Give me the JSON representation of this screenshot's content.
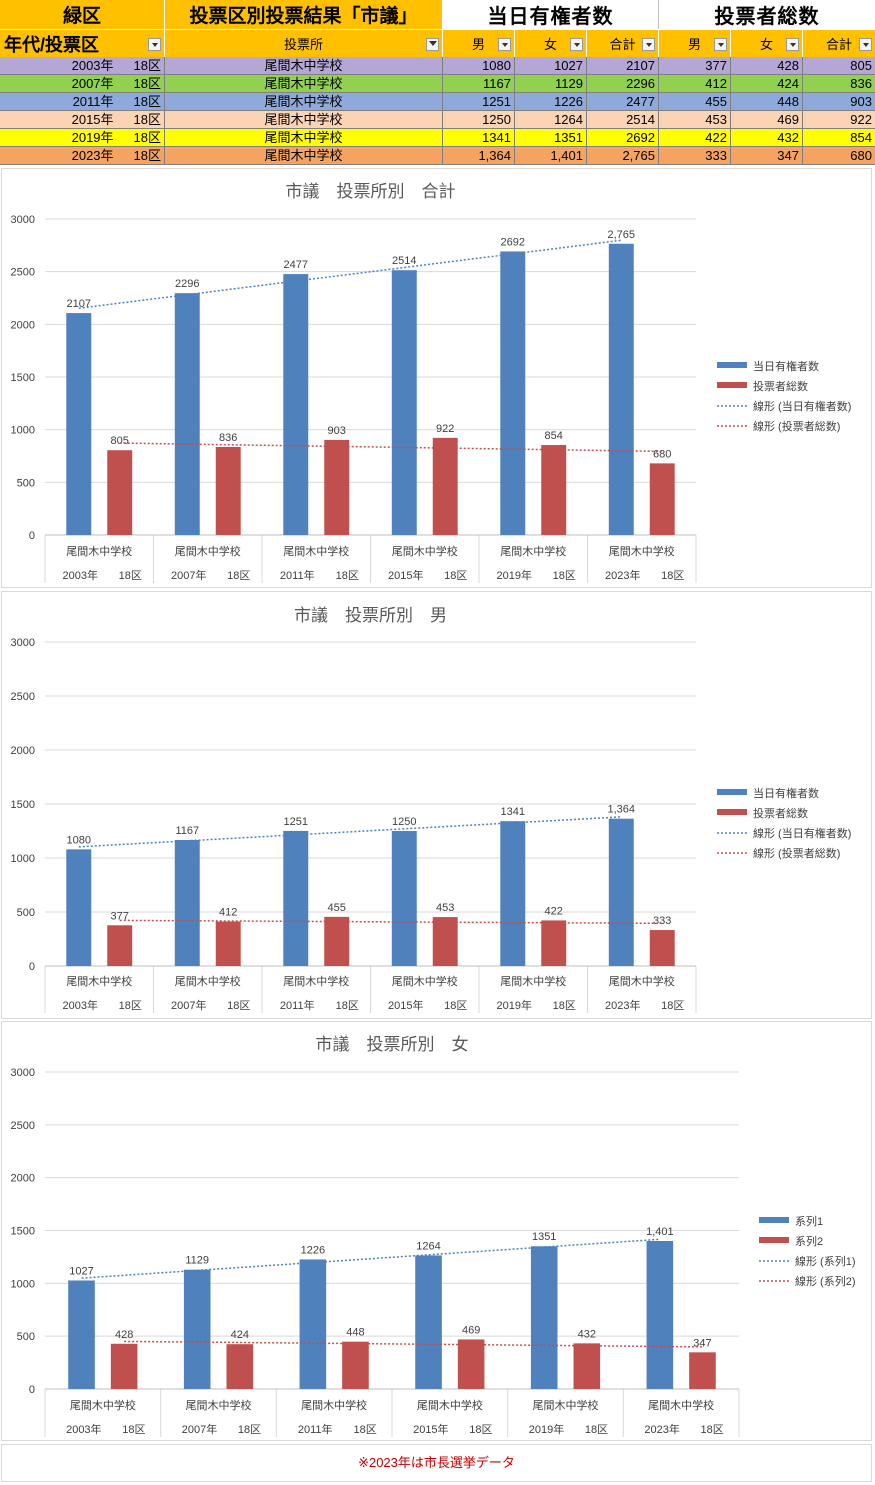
{
  "table": {
    "top_headers": {
      "ward": "緑区",
      "title": "投票区別投票結果「市議」",
      "eligible": "当日有権者数",
      "voters": "投票者総数"
    },
    "columns": {
      "era": "年代/投票区",
      "station": "投票所",
      "m1": "男",
      "f1": "女",
      "t1": "合計",
      "m2": "男",
      "f2": "女",
      "t2": "合計"
    },
    "rows": [
      {
        "year": "2003年",
        "district": "18区",
        "station": "尾間木中学校",
        "m1": "1080",
        "f1": "1027",
        "t1": "2107",
        "m2": "377",
        "f2": "428",
        "t2": "805",
        "color": "#b4a7d6"
      },
      {
        "year": "2007年",
        "district": "18区",
        "station": "尾間木中学校",
        "m1": "1167",
        "f1": "1129",
        "t1": "2296",
        "m2": "412",
        "f2": "424",
        "t2": "836",
        "color": "#92d050"
      },
      {
        "year": "2011年",
        "district": "18区",
        "station": "尾間木中学校",
        "m1": "1251",
        "f1": "1226",
        "t1": "2477",
        "m2": "455",
        "f2": "448",
        "t2": "903",
        "color": "#8eaadb"
      },
      {
        "year": "2015年",
        "district": "18区",
        "station": "尾間木中学校",
        "m1": "1250",
        "f1": "1264",
        "t1": "2514",
        "m2": "453",
        "f2": "469",
        "t2": "922",
        "color": "#fbd4b4"
      },
      {
        "year": "2019年",
        "district": "18区",
        "station": "尾間木中学校",
        "m1": "1341",
        "f1": "1351",
        "t1": "2692",
        "m2": "422",
        "f2": "432",
        "t2": "854",
        "color": "#ffff00"
      },
      {
        "year": "2023年",
        "district": "18区",
        "station": "尾間木中学校",
        "m1": "1,364",
        "f1": "1,401",
        "t1": "2,765",
        "m2": "333",
        "f2": "347",
        "t2": "680",
        "color": "#f4a460"
      }
    ]
  },
  "chart_data": [
    {
      "type": "bar",
      "title": "市議　投票所別　合計",
      "categories": [
        "尾間木中学校",
        "尾間木中学校",
        "尾間木中学校",
        "尾間木中学校",
        "尾間木中学校",
        "尾間木中学校"
      ],
      "group_labels": [
        {
          "year": "2003年",
          "district": "18区"
        },
        {
          "year": "2007年",
          "district": "18区"
        },
        {
          "year": "2011年",
          "district": "18区"
        },
        {
          "year": "2015年",
          "district": "18区"
        },
        {
          "year": "2019年",
          "district": "18区"
        },
        {
          "year": "2023年",
          "district": "18区"
        }
      ],
      "series": [
        {
          "name": "当日有権者数",
          "values": [
            2107,
            2296,
            2477,
            2514,
            2692,
            2765
          ],
          "labels": [
            "2107",
            "2296",
            "2477",
            "2514",
            "2692",
            "2,765"
          ],
          "color": "#4f81bd"
        },
        {
          "name": "投票者総数",
          "values": [
            805,
            836,
            903,
            922,
            854,
            680
          ],
          "labels": [
            "805",
            "836",
            "903",
            "922",
            "854",
            "680"
          ],
          "color": "#c0504d"
        }
      ],
      "trendlines": [
        {
          "name": "線形 (当日有権者数)",
          "color": "#4f81bd"
        },
        {
          "name": "線形 (投票者総数)",
          "color": "#c0504d"
        }
      ],
      "y_ticks": [
        "0",
        "500",
        "1000",
        "1500",
        "2000",
        "2500",
        "3000"
      ],
      "ylim": [
        0,
        3000
      ],
      "grid": true,
      "legend": "right"
    },
    {
      "type": "bar",
      "title": "市議　投票所別　男",
      "categories": [
        "尾間木中学校",
        "尾間木中学校",
        "尾間木中学校",
        "尾間木中学校",
        "尾間木中学校",
        "尾間木中学校"
      ],
      "group_labels": [
        {
          "year": "2003年",
          "district": "18区"
        },
        {
          "year": "2007年",
          "district": "18区"
        },
        {
          "year": "2011年",
          "district": "18区"
        },
        {
          "year": "2015年",
          "district": "18区"
        },
        {
          "year": "2019年",
          "district": "18区"
        },
        {
          "year": "2023年",
          "district": "18区"
        }
      ],
      "series": [
        {
          "name": "当日有権者数",
          "values": [
            1080,
            1167,
            1251,
            1250,
            1341,
            1364
          ],
          "labels": [
            "1080",
            "1167",
            "1251",
            "1250",
            "1341",
            "1,364"
          ],
          "color": "#4f81bd"
        },
        {
          "name": "投票者総数",
          "values": [
            377,
            412,
            455,
            453,
            422,
            333
          ],
          "labels": [
            "377",
            "412",
            "455",
            "453",
            "422",
            "333"
          ],
          "color": "#c0504d"
        }
      ],
      "trendlines": [
        {
          "name": "線形 (当日有権者数)",
          "color": "#4f81bd"
        },
        {
          "name": "線形 (投票者総数)",
          "color": "#c0504d"
        }
      ],
      "y_ticks": [
        "0",
        "500",
        "1000",
        "1500",
        "2000",
        "2500",
        "3000"
      ],
      "ylim": [
        0,
        3000
      ],
      "grid": true,
      "legend": "right"
    },
    {
      "type": "bar",
      "title": "市議　投票所別　女",
      "categories": [
        "尾間木中学校",
        "尾間木中学校",
        "尾間木中学校",
        "尾間木中学校",
        "尾間木中学校",
        "尾間木中学校"
      ],
      "group_labels": [
        {
          "year": "2003年",
          "district": "18区"
        },
        {
          "year": "2007年",
          "district": "18区"
        },
        {
          "year": "2011年",
          "district": "18区"
        },
        {
          "year": "2015年",
          "district": "18区"
        },
        {
          "year": "2019年",
          "district": "18区"
        },
        {
          "year": "2023年",
          "district": "18区"
        }
      ],
      "series": [
        {
          "name": "系列1",
          "values": [
            1027,
            1129,
            1226,
            1264,
            1351,
            1401
          ],
          "labels": [
            "1027",
            "1129",
            "1226",
            "1264",
            "1351",
            "1,401"
          ],
          "color": "#4f81bd"
        },
        {
          "name": "系列2",
          "values": [
            428,
            424,
            448,
            469,
            432,
            347
          ],
          "labels": [
            "428",
            "424",
            "448",
            "469",
            "432",
            "347"
          ],
          "color": "#c0504d"
        }
      ],
      "trendlines": [
        {
          "name": "線形 (系列1)",
          "color": "#4f81bd"
        },
        {
          "name": "線形 (系列2)",
          "color": "#c0504d"
        }
      ],
      "y_ticks": [
        "0",
        "500",
        "1000",
        "1500",
        "2000",
        "2500",
        "3000"
      ],
      "ylim": [
        0,
        3000
      ],
      "grid": true,
      "legend": "right"
    }
  ],
  "note": "※2023年は市長選挙データ"
}
